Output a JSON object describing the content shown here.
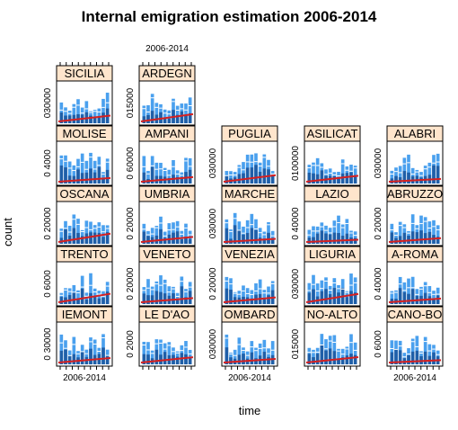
{
  "chart_data": {
    "type": "bar",
    "title": "Internal emigration estimation 2006-2014",
    "xlabel": "time",
    "ylabel": "count",
    "x_tick_label": "2006-2014",
    "colors": {
      "strip": "#ffe5cc",
      "bar_dark": "#1f5fa8",
      "bar_light": "#4aa0ee",
      "line": "#d62020"
    },
    "panels": [
      {
        "region": "SICILIA",
        "y_tick_label": "030000"
      },
      {
        "region": "ARDEGN",
        "y_tick_label": "015000"
      },
      {
        "region": "MOLISE",
        "y_tick_label": "0 4000"
      },
      {
        "region": "AMPANI",
        "y_tick_label": "0 60000"
      },
      {
        "region": "PUGLIA",
        "y_tick_label": "030000"
      },
      {
        "region": "ASILICAT",
        "y_tick_label": "0100000"
      },
      {
        "region": "ALABRI",
        "y_tick_label": "030000"
      },
      {
        "region": "OSCANA",
        "y_tick_label": "0 20000"
      },
      {
        "region": "UMBRIA",
        "y_tick_label": "0 20000"
      },
      {
        "region": "MARCHE",
        "y_tick_label": "030000"
      },
      {
        "region": "LAZIO",
        "y_tick_label": "0 40000"
      },
      {
        "region": "ABRUZZO",
        "y_tick_label": "0 20000"
      },
      {
        "region": "TRENTO",
        "y_tick_label": "0 6000"
      },
      {
        "region": "VENETO",
        "y_tick_label": "0 20000"
      },
      {
        "region": "VENEZIA",
        "y_tick_label": "0 20000"
      },
      {
        "region": "LIGURIA",
        "y_tick_label": "030000"
      },
      {
        "region": "A-ROMA",
        "y_tick_label": "0 40000"
      },
      {
        "region": "IEMONT",
        "y_tick_label": "0 30000"
      },
      {
        "region": "LE D'AO",
        "y_tick_label": "0 2000"
      },
      {
        "region": "OMBARD",
        "y_tick_label": "030000"
      },
      {
        "region": "NO-ALTO",
        "y_tick_label": "015000"
      },
      {
        "region": "CANO-BO",
        "y_tick_label": "0 6000"
      }
    ]
  }
}
